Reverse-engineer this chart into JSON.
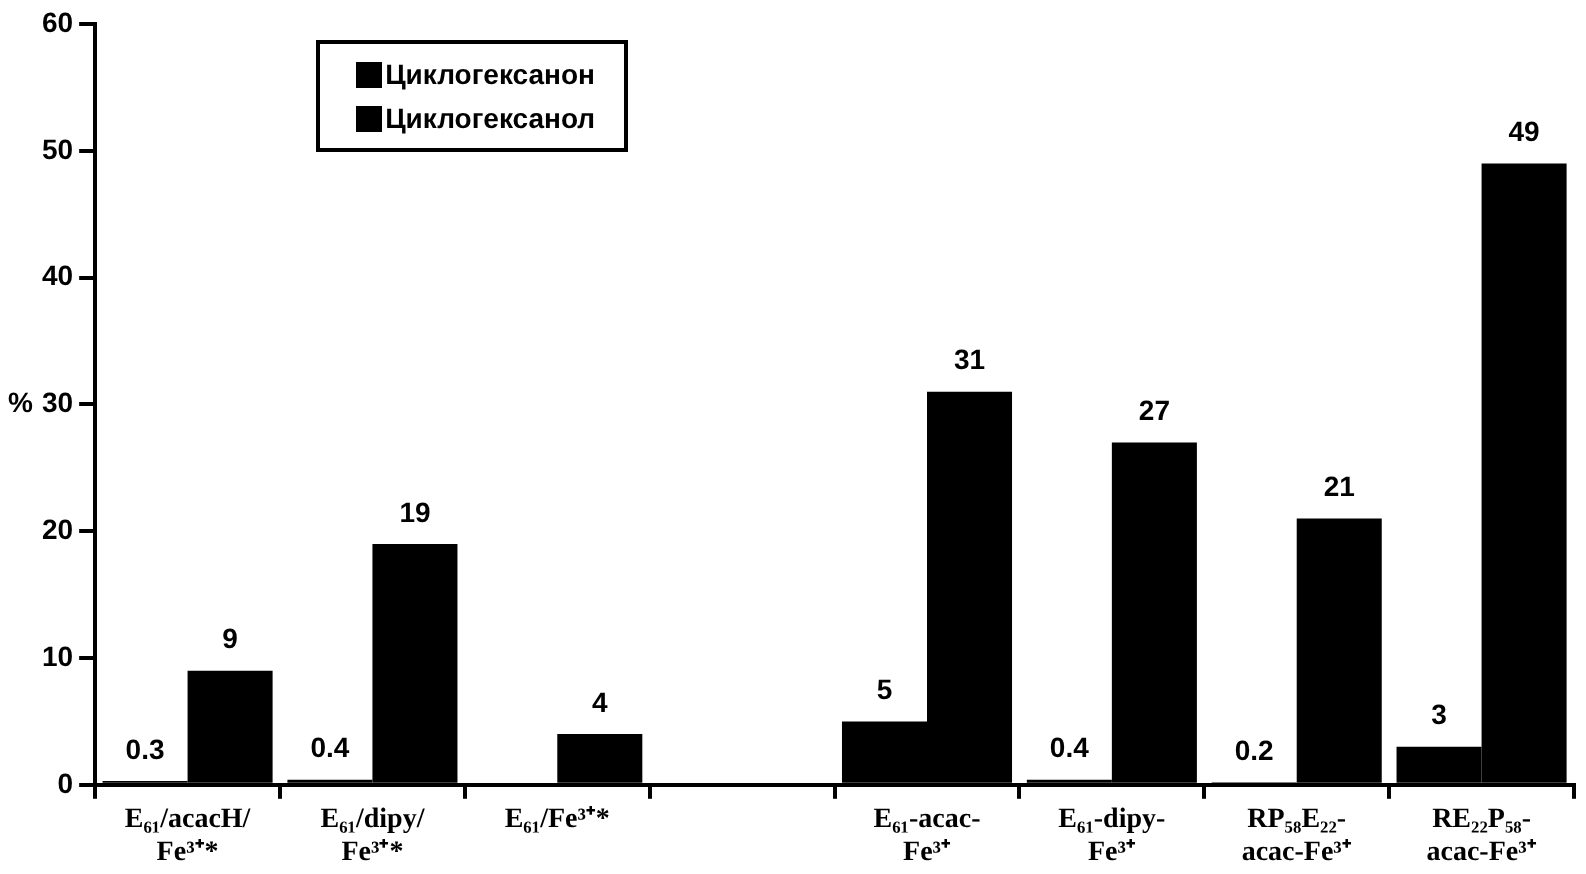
{
  "chart_data": {
    "type": "bar",
    "ylabel": "%",
    "categories": [
      "E₆₁/acacH/\nFe³⁺*",
      "E₆₁/dipy/\nFe³⁺*",
      "E₆₁/Fe³⁺*",
      null,
      "E₆₁-acac-\nFe³⁺",
      "E₆₁-dipy-\nFe³⁺",
      "RP₅₈E₂₂-\nacac-Fe³⁺",
      "RE₂₂P₅₈-\nacac-Fe³⁺"
    ],
    "series": [
      {
        "name": "Циклогексанон",
        "color": "#000000",
        "values": [
          0.3,
          0.4,
          null,
          null,
          5,
          0.4,
          0.2,
          3
        ]
      },
      {
        "name": "Циклогексанол",
        "color": "#000000",
        "values": [
          9,
          19,
          4,
          null,
          31,
          27,
          21,
          49
        ]
      }
    ],
    "ylim": [
      0,
      60
    ],
    "yticks": [
      0,
      10,
      20,
      30,
      40,
      50,
      60
    ],
    "grid": false,
    "legend": "top left",
    "data_labels": true
  }
}
